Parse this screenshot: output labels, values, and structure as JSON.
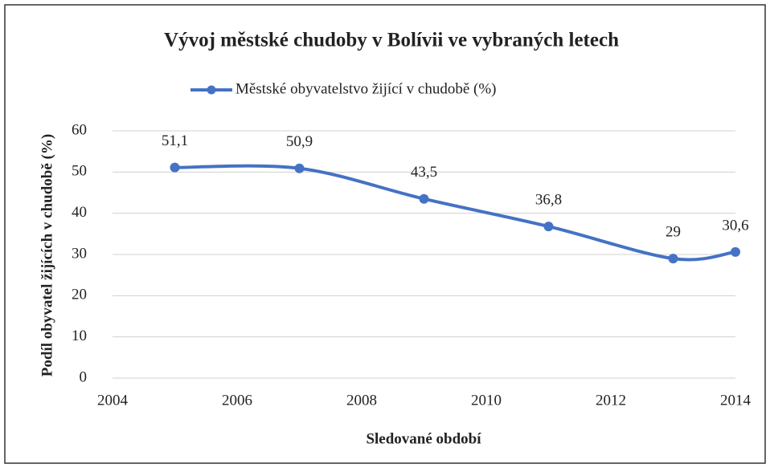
{
  "chart_data": {
    "type": "line",
    "title": "Vývoj městské chudoby  v Bolívii ve vybraných  letech",
    "x_label": "Sledované  období",
    "y_label": "Podíl obyvatel  žijících v chudobě  (%)",
    "x": [
      2005,
      2007,
      2009,
      2011,
      2013,
      2014
    ],
    "series": [
      {
        "name": "Městské obyvatelstvo žijící v chudobě (%)",
        "color": "#4472c4",
        "values": [
          51.1,
          50.9,
          43.5,
          36.8,
          29,
          30.6
        ],
        "value_labels": [
          "51,1",
          "50,9",
          "43,5",
          "36,8",
          "29",
          "30,6"
        ]
      }
    ],
    "xlim": [
      2004,
      2014
    ],
    "xticks": [
      2004,
      2006,
      2008,
      2010,
      2012,
      2014
    ],
    "ylim": [
      0,
      60
    ],
    "yticks": [
      0,
      10,
      20,
      30,
      40,
      50,
      60
    ],
    "grid": true,
    "smooth": true,
    "legend": "top"
  }
}
